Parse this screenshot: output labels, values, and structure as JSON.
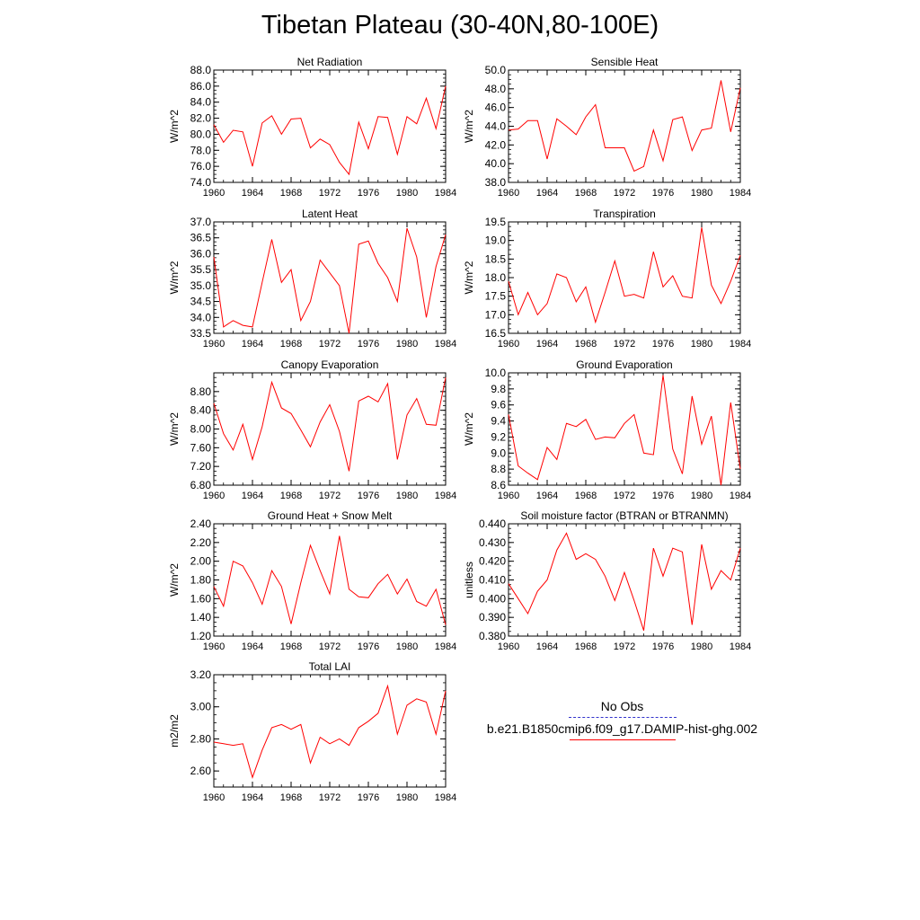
{
  "title": "Tibetan Plateau (30-40N,80-100E)",
  "legend": {
    "obs_label": "No Obs",
    "obs_color": "#3333cc",
    "model_label": "b.e21.B1850cmip6.f09_g17.DAMIP-hist-ghg.002",
    "model_color": "#ff0000"
  },
  "chart_data": [
    {
      "type": "line",
      "title": "Net Radiation",
      "ylabel": "W/m^2",
      "xlim": [
        1960,
        1984
      ],
      "ylim": [
        74,
        88
      ],
      "xticks": [
        "1960",
        "1964",
        "1968",
        "1972",
        "1976",
        "1980",
        "1984"
      ],
      "yticks": [
        "74.0",
        "76.0",
        "78.0",
        "80.0",
        "82.0",
        "84.0",
        "86.0",
        "88.0"
      ],
      "x": [
        1960,
        1961,
        1962,
        1963,
        1964,
        1965,
        1966,
        1967,
        1968,
        1969,
        1970,
        1971,
        1972,
        1973,
        1974,
        1975,
        1976,
        1977,
        1978,
        1979,
        1980,
        1981,
        1982,
        1983,
        1984
      ],
      "series": [
        {
          "color": "#ff0000",
          "values": [
            81.2,
            79.0,
            80.5,
            80.3,
            76.0,
            81.4,
            82.3,
            80.0,
            81.9,
            82.0,
            78.3,
            79.4,
            78.7,
            76.5,
            75.0,
            81.5,
            78.2,
            82.2,
            82.1,
            77.5,
            82.2,
            81.3,
            84.5,
            80.7,
            86.0
          ]
        }
      ]
    },
    {
      "type": "line",
      "title": "Sensible Heat",
      "ylabel": "W/m^2",
      "xlim": [
        1960,
        1984
      ],
      "ylim": [
        38,
        50
      ],
      "xticks": [
        "1960",
        "1964",
        "1968",
        "1972",
        "1976",
        "1980",
        "1984"
      ],
      "yticks": [
        "38.0",
        "40.0",
        "42.0",
        "44.0",
        "46.0",
        "48.0",
        "50.0"
      ],
      "x": [
        1960,
        1961,
        1962,
        1963,
        1964,
        1965,
        1966,
        1967,
        1968,
        1969,
        1970,
        1971,
        1972,
        1973,
        1974,
        1975,
        1976,
        1977,
        1978,
        1979,
        1980,
        1981,
        1982,
        1983,
        1984
      ],
      "series": [
        {
          "color": "#ff0000",
          "values": [
            43.6,
            43.7,
            44.6,
            44.6,
            40.5,
            44.8,
            44.0,
            43.1,
            45.0,
            46.3,
            41.7,
            41.7,
            41.7,
            39.2,
            39.7,
            43.6,
            40.3,
            44.7,
            45.0,
            41.4,
            43.6,
            43.8,
            48.9,
            43.4,
            48.1
          ]
        }
      ]
    },
    {
      "type": "line",
      "title": "Latent Heat",
      "ylabel": "W/m^2",
      "xlim": [
        1960,
        1984
      ],
      "ylim": [
        33.5,
        37.0
      ],
      "xticks": [
        "1960",
        "1964",
        "1968",
        "1972",
        "1976",
        "1980",
        "1984"
      ],
      "yticks": [
        "33.5",
        "34.0",
        "34.5",
        "35.0",
        "35.5",
        "36.0",
        "36.5",
        "37.0"
      ],
      "x": [
        1960,
        1961,
        1962,
        1963,
        1964,
        1965,
        1966,
        1967,
        1968,
        1969,
        1970,
        1971,
        1972,
        1973,
        1974,
        1975,
        1976,
        1977,
        1978,
        1979,
        1980,
        1981,
        1982,
        1983,
        1984
      ],
      "series": [
        {
          "color": "#ff0000",
          "values": [
            35.9,
            33.7,
            33.9,
            33.75,
            33.7,
            35.1,
            36.45,
            35.1,
            35.5,
            33.9,
            34.5,
            35.8,
            35.4,
            35.0,
            33.5,
            36.3,
            36.4,
            35.7,
            35.25,
            34.5,
            36.8,
            35.9,
            34.0,
            35.6,
            36.6
          ]
        }
      ]
    },
    {
      "type": "line",
      "title": "Transpiration",
      "ylabel": "W/m^2",
      "xlim": [
        1960,
        1984
      ],
      "ylim": [
        16.5,
        19.5
      ],
      "xticks": [
        "1960",
        "1964",
        "1968",
        "1972",
        "1976",
        "1980",
        "1984"
      ],
      "yticks": [
        "16.5",
        "17.0",
        "17.5",
        "18.0",
        "18.5",
        "19.0",
        "19.5"
      ],
      "x": [
        1960,
        1961,
        1962,
        1963,
        1964,
        1965,
        1966,
        1967,
        1968,
        1969,
        1970,
        1971,
        1972,
        1973,
        1974,
        1975,
        1976,
        1977,
        1978,
        1979,
        1980,
        1981,
        1982,
        1983,
        1984
      ],
      "series": [
        {
          "color": "#ff0000",
          "values": [
            17.9,
            17.0,
            17.6,
            17.0,
            17.3,
            18.1,
            18.0,
            17.35,
            17.75,
            16.8,
            17.6,
            18.45,
            17.5,
            17.55,
            17.45,
            18.7,
            17.75,
            18.05,
            17.5,
            17.45,
            19.35,
            17.8,
            17.3,
            17.9,
            18.6
          ]
        }
      ]
    },
    {
      "type": "line",
      "title": "Canopy Evaporation",
      "ylabel": "W/m^2",
      "xlim": [
        1960,
        1984
      ],
      "ylim": [
        6.8,
        9.2
      ],
      "xticks": [
        "1960",
        "1964",
        "1968",
        "1972",
        "1976",
        "1980",
        "1984"
      ],
      "yticks": [
        "6.80",
        "7.20",
        "7.60",
        "8.00",
        "8.40",
        "8.80"
      ],
      "x": [
        1960,
        1961,
        1962,
        1963,
        1964,
        1965,
        1966,
        1967,
        1968,
        1969,
        1970,
        1971,
        1972,
        1973,
        1974,
        1975,
        1976,
        1977,
        1978,
        1979,
        1980,
        1981,
        1982,
        1983,
        1984
      ],
      "series": [
        {
          "color": "#ff0000",
          "values": [
            8.55,
            7.9,
            7.55,
            8.1,
            7.35,
            8.05,
            9.0,
            8.45,
            8.33,
            7.98,
            7.62,
            8.15,
            8.52,
            7.95,
            7.1,
            8.6,
            8.7,
            8.58,
            8.97,
            7.35,
            8.3,
            8.65,
            8.1,
            8.08,
            9.1
          ]
        }
      ]
    },
    {
      "type": "line",
      "title": "Ground Evaporation",
      "ylabel": "W/m^2",
      "xlim": [
        1960,
        1984
      ],
      "ylim": [
        8.6,
        10.0
      ],
      "xticks": [
        "1960",
        "1964",
        "1968",
        "1972",
        "1976",
        "1980",
        "1984"
      ],
      "yticks": [
        "8.6",
        "8.8",
        "9.0",
        "9.2",
        "9.4",
        "9.6",
        "9.8",
        "10.0"
      ],
      "x": [
        1960,
        1961,
        1962,
        1963,
        1964,
        1965,
        1966,
        1967,
        1968,
        1969,
        1970,
        1971,
        1972,
        1973,
        1974,
        1975,
        1976,
        1977,
        1978,
        1979,
        1980,
        1981,
        1982,
        1983,
        1984
      ],
      "series": [
        {
          "color": "#ff0000",
          "values": [
            9.48,
            8.84,
            8.75,
            8.67,
            9.07,
            8.92,
            9.37,
            9.33,
            9.42,
            9.17,
            9.2,
            9.19,
            9.37,
            9.48,
            9.0,
            8.98,
            9.97,
            9.05,
            8.74,
            9.71,
            9.11,
            9.46,
            8.6,
            9.63,
            8.8
          ]
        }
      ]
    },
    {
      "type": "line",
      "title": "Ground Heat + Snow Melt",
      "ylabel": "W/m^2",
      "xlim": [
        1960,
        1984
      ],
      "ylim": [
        1.2,
        2.4
      ],
      "xticks": [
        "1960",
        "1964",
        "1968",
        "1972",
        "1976",
        "1980",
        "1984"
      ],
      "yticks": [
        "1.20",
        "1.40",
        "1.60",
        "1.80",
        "2.00",
        "2.20",
        "2.40"
      ],
      "x": [
        1960,
        1961,
        1962,
        1963,
        1964,
        1965,
        1966,
        1967,
        1968,
        1969,
        1970,
        1971,
        1972,
        1973,
        1974,
        1975,
        1976,
        1977,
        1978,
        1979,
        1980,
        1981,
        1982,
        1983,
        1984
      ],
      "series": [
        {
          "color": "#ff0000",
          "values": [
            1.73,
            1.52,
            2.0,
            1.95,
            1.77,
            1.54,
            1.9,
            1.73,
            1.33,
            1.77,
            2.17,
            1.9,
            1.65,
            2.27,
            1.7,
            1.62,
            1.61,
            1.76,
            1.86,
            1.65,
            1.81,
            1.57,
            1.52,
            1.7,
            1.32
          ]
        }
      ]
    },
    {
      "type": "line",
      "title": "Soil moisture factor (BTRAN or BTRANMN)",
      "ylabel": "unitless",
      "xlim": [
        1960,
        1984
      ],
      "ylim": [
        0.38,
        0.44
      ],
      "xticks": [
        "1960",
        "1964",
        "1968",
        "1972",
        "1976",
        "1980",
        "1984"
      ],
      "yticks": [
        "0.380",
        "0.390",
        "0.400",
        "0.410",
        "0.420",
        "0.430",
        "0.440"
      ],
      "x": [
        1960,
        1961,
        1962,
        1963,
        1964,
        1965,
        1966,
        1967,
        1968,
        1969,
        1970,
        1971,
        1972,
        1973,
        1974,
        1975,
        1976,
        1977,
        1978,
        1979,
        1980,
        1981,
        1982,
        1983,
        1984
      ],
      "series": [
        {
          "color": "#ff0000",
          "values": [
            0.408,
            0.4,
            0.392,
            0.404,
            0.41,
            0.426,
            0.435,
            0.421,
            0.424,
            0.421,
            0.412,
            0.399,
            0.414,
            0.399,
            0.383,
            0.427,
            0.412,
            0.427,
            0.425,
            0.386,
            0.429,
            0.405,
            0.415,
            0.41,
            0.427
          ]
        }
      ]
    },
    {
      "type": "line",
      "title": "Total LAI",
      "ylabel": "m2/m2",
      "xlim": [
        1960,
        1984
      ],
      "ylim": [
        2.5,
        3.2
      ],
      "xticks": [
        "1960",
        "1964",
        "1968",
        "1972",
        "1976",
        "1980",
        "1984"
      ],
      "yticks": [
        "2.60",
        "2.80",
        "3.00",
        "3.20"
      ],
      "x": [
        1960,
        1961,
        1962,
        1963,
        1964,
        1965,
        1966,
        1967,
        1968,
        1969,
        1970,
        1971,
        1972,
        1973,
        1974,
        1975,
        1976,
        1977,
        1978,
        1979,
        1980,
        1981,
        1982,
        1983,
        1984
      ],
      "series": [
        {
          "color": "#ff0000",
          "values": [
            2.78,
            2.77,
            2.76,
            2.77,
            2.56,
            2.73,
            2.87,
            2.89,
            2.86,
            2.89,
            2.65,
            2.81,
            2.77,
            2.8,
            2.76,
            2.87,
            2.91,
            2.96,
            3.13,
            2.83,
            3.01,
            3.05,
            3.03,
            2.83,
            3.1
          ]
        }
      ]
    }
  ]
}
